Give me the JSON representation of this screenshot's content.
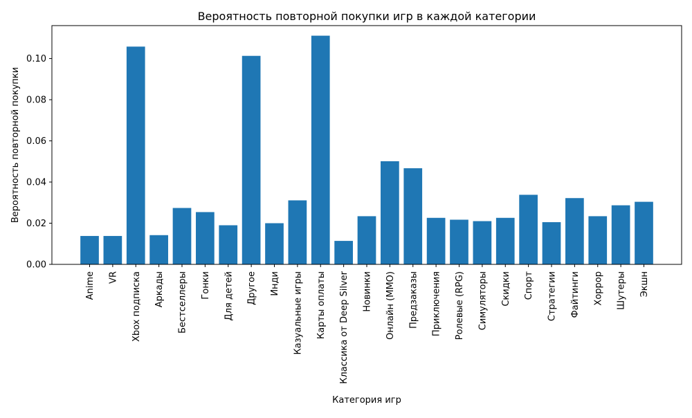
{
  "chart_data": {
    "type": "bar",
    "title": "Вероятность повторной покупки игр в каждой категории",
    "xlabel": "Категория игр",
    "ylabel": "Вероятность повторной покупки",
    "ylim": [
      0,
      0.116
    ],
    "yticks": [
      "0.00",
      "0.02",
      "0.04",
      "0.06",
      "0.08",
      "0.10"
    ],
    "grid": false,
    "legend": "none",
    "bar_color": "#1f77b4",
    "categories": [
      "Anime",
      "VR",
      "Xbox подписка",
      "Аркады",
      "Бестселлеры",
      "Гонки",
      "Для детей",
      "Другое",
      "Инди",
      "Казуальные игры",
      "Карты оплаты",
      "Классика от Deep Silver",
      "Новинки",
      "Онлайн (ММО)",
      "Предзаказы",
      "Приключения",
      "Ролевые (RPG)",
      "Симуляторы",
      "Скидки",
      "Спорт",
      "Стратегии",
      "Файтинги",
      "Хоррор",
      "Шутеры",
      "Экшн"
    ],
    "values": [
      0.0138,
      0.0138,
      0.1058,
      0.0142,
      0.0274,
      0.0254,
      0.019,
      0.1013,
      0.02,
      0.0311,
      0.1111,
      0.0114,
      0.0234,
      0.0501,
      0.0467,
      0.0226,
      0.0217,
      0.021,
      0.0226,
      0.0338,
      0.0205,
      0.0322,
      0.0234,
      0.0287,
      0.0304
    ]
  }
}
